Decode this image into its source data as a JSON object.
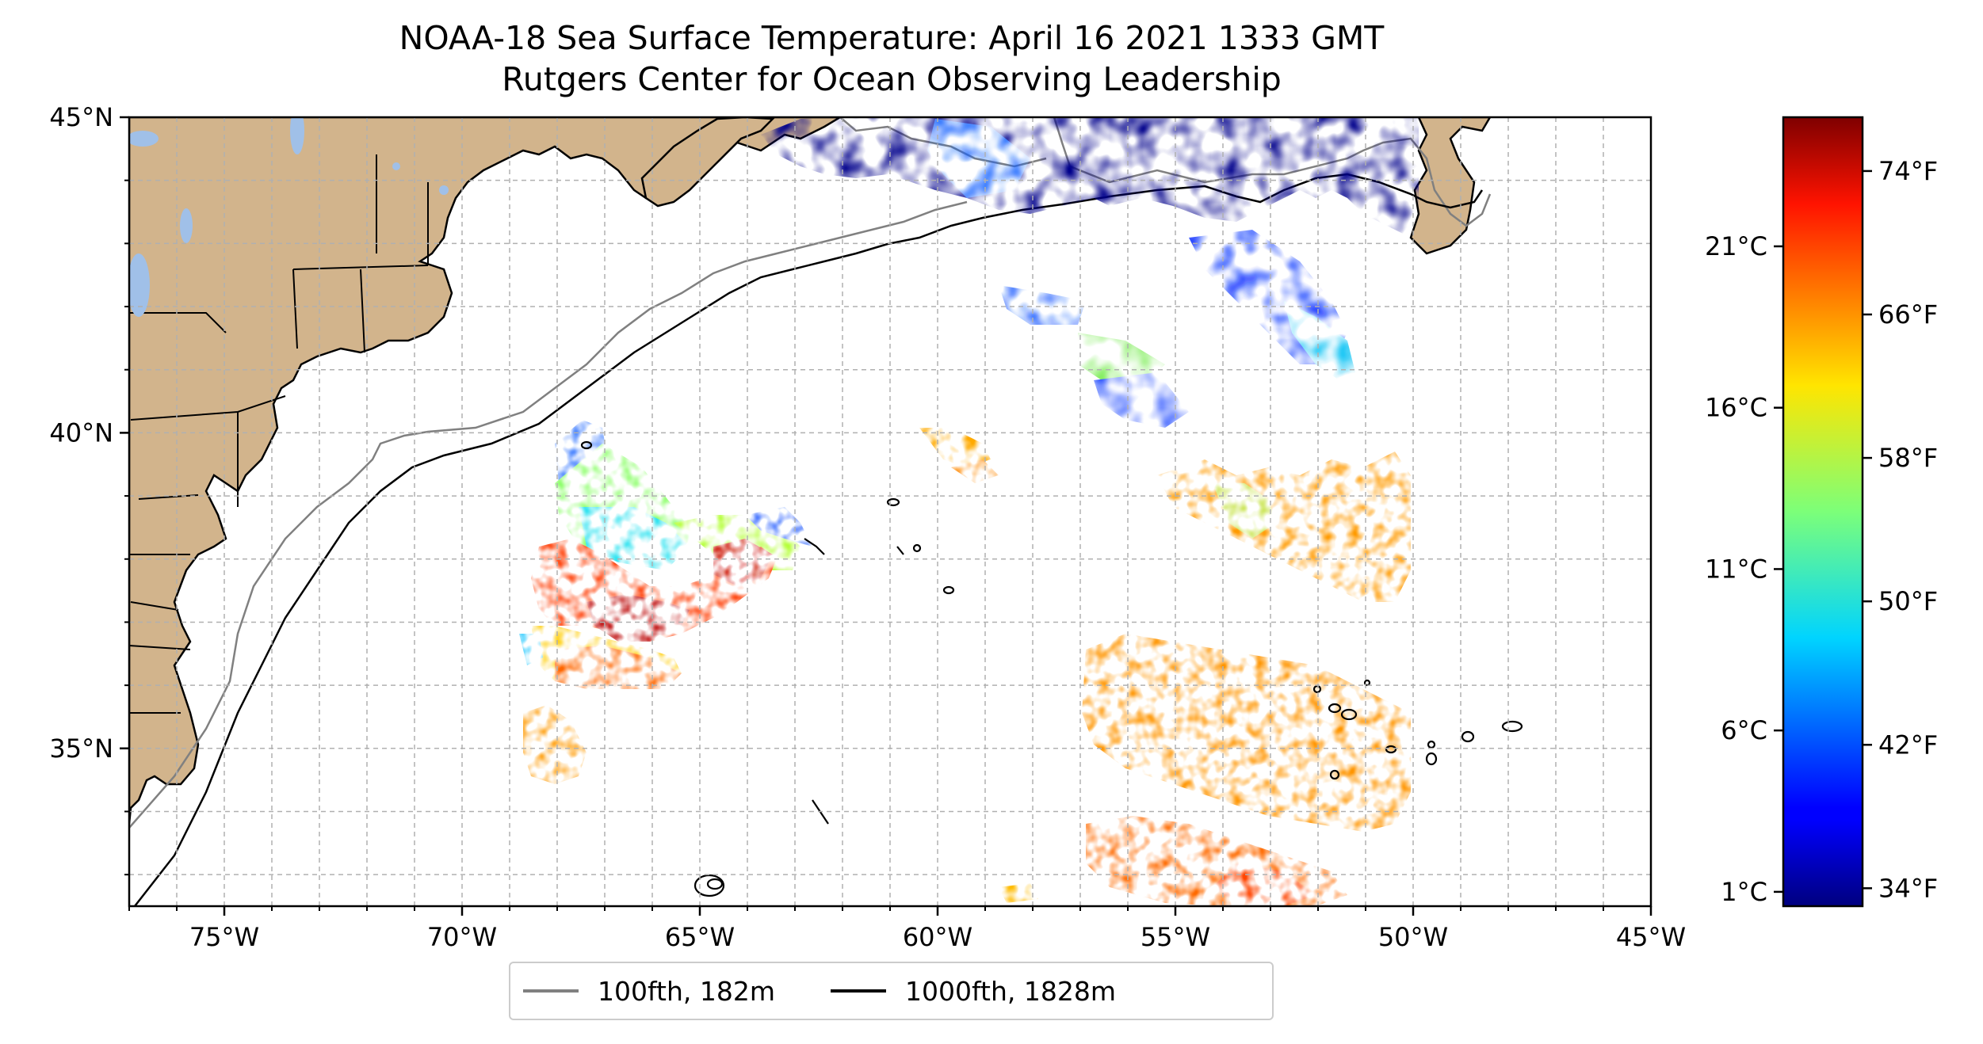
{
  "title": {
    "line1": "NOAA-18 Sea Surface Temperature: April 16 2021 1333 GMT",
    "line2": "Rutgers Center for Ocean Observing Leadership"
  },
  "map": {
    "lon_range": [
      -77,
      -45
    ],
    "lat_range": [
      32.5,
      45
    ],
    "lon_ticks": [
      "75°W",
      "70°W",
      "65°W",
      "60°W",
      "55°W",
      "50°W",
      "45°W"
    ],
    "lon_tick_values": [
      -75,
      -70,
      -65,
      -60,
      -55,
      -50,
      -45
    ],
    "lat_ticks": [
      "35°N",
      "40°N",
      "45°N"
    ],
    "lat_tick_values": [
      35,
      40,
      45
    ],
    "gridlines": true,
    "land_color": "#d2b48c",
    "water_bodies_color": "#a0c0e8"
  },
  "colorbar": {
    "colormap": "jet",
    "celsius_ticks": [
      "21°C",
      "16°C",
      "11°C",
      "6°C",
      "1°C"
    ],
    "celsius_values": [
      21,
      16,
      11,
      6,
      1
    ],
    "fahrenheit_ticks": [
      "74°F",
      "66°F",
      "58°F",
      "50°F",
      "42°F",
      "34°F"
    ],
    "fahrenheit_values": [
      74,
      66,
      58,
      50,
      42,
      34
    ],
    "range_f": [
      33,
      77
    ]
  },
  "legend": {
    "items": [
      {
        "label": "100fth, 182m",
        "color": "#808080"
      },
      {
        "label": "1000fth, 1828m",
        "color": "#000000"
      }
    ]
  }
}
